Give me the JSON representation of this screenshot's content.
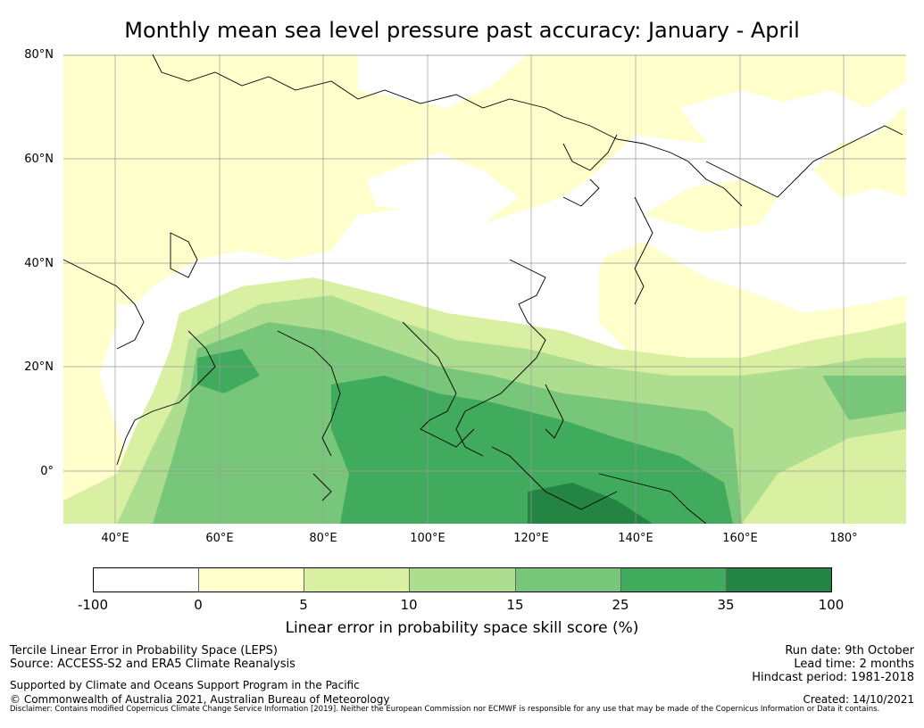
{
  "title": "Monthly mean sea level pressure past accuracy: January - April",
  "map": {
    "lat_labels": [
      "80°N",
      "60°N",
      "40°N",
      "20°N",
      "0°"
    ],
    "lon_labels": [
      "40°E",
      "60°E",
      "80°E",
      "100°E",
      "120°E",
      "140°E",
      "160°E",
      "180°"
    ],
    "colors": {
      "white": "#ffffff",
      "pale_yellow": "#ffffcc",
      "light_yellow_green": "#d9f0a3",
      "light_green": "#addd8e",
      "green": "#78c679",
      "medium_green": "#41ab5d",
      "dark_green": "#238443",
      "coastline": "#000000",
      "gridline": "#999999"
    }
  },
  "colorbar": {
    "ticks": [
      "-100",
      "0",
      "5",
      "10",
      "15",
      "25",
      "35",
      "100"
    ],
    "colors": [
      "#ffffff",
      "#ffffcc",
      "#d9f0a3",
      "#addd8e",
      "#78c679",
      "#41ab5d",
      "#238443"
    ],
    "label": "Linear error in probability space skill score (%)"
  },
  "footer": {
    "left1": "Tercile Linear Error in Probability Space (LEPS)",
    "left2": "Source: ACCESS-S2 and ERA5 Climate Reanalysis",
    "left3": "Supported by Climate and Oceans Support Program in the Pacific",
    "left4": "© Commonwealth of Australia 2021, Australian Bureau of Meteorology",
    "right1": "Run date: 9th October",
    "right2": "Lead time: 2 months",
    "right3": "Hindcast period: 1981-2018",
    "right4": "Created: 14/10/2021",
    "disclaimer": "Disclaimer: Contains modified Copernicus Climate Change Service Information [2019]. Neither the European Commission nor ECMWF is responsible for any use that may be made of the Copernicus Information or Data it contains."
  }
}
